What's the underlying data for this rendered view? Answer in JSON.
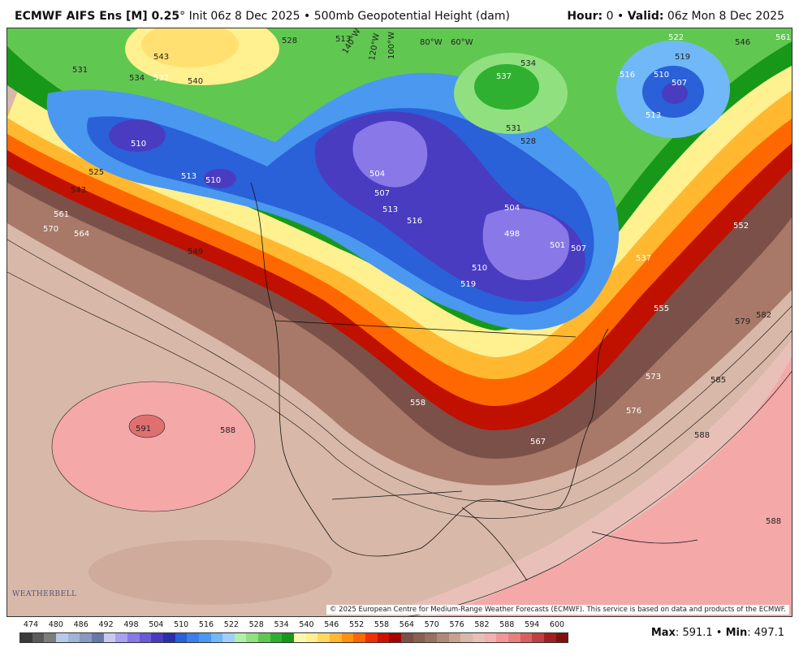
{
  "header": {
    "model": "ECMWF AIFS Ens [M] 0.25",
    "degree": "°",
    "init": "Init 06z 8 Dec 2025",
    "bullet": "•",
    "field": "500mb Geopotential Height (dam)",
    "hour_label": "Hour:",
    "hour_value": "0",
    "valid_label": "Valid:",
    "valid_value": "06z Mon 8 Dec 2025"
  },
  "copyright": "© 2025 European Centre for Medium-Range Weather Forecasts (ECMWF). This service is based on data and products of the ECMWF.",
  "logo": "WEATHERBELL",
  "colorbar": {
    "ticks": [
      "474",
      "480",
      "486",
      "492",
      "498",
      "504",
      "510",
      "516",
      "522",
      "528",
      "534",
      "540",
      "546",
      "552",
      "558",
      "564",
      "570",
      "576",
      "582",
      "588",
      "594",
      "600"
    ],
    "colors": [
      "#3a3a3a",
      "#5a5a5a",
      "#7d7d7d",
      "#b8c8e8",
      "#a0b4d8",
      "#8898c0",
      "#6878a8",
      "#c8c8f0",
      "#a8a0f0",
      "#8878e8",
      "#6a5ad8",
      "#4a3cc0",
      "#2a30a8",
      "#2a60d8",
      "#3a80e8",
      "#4a98f0",
      "#70b8f8",
      "#a0d0fa",
      "#b0f0a8",
      "#90e080",
      "#60c850",
      "#30b030",
      "#189818",
      "#f8f8b0",
      "#fff090",
      "#ffd860",
      "#ffb830",
      "#ff9010",
      "#ff6800",
      "#f03000",
      "#d01000",
      "#a80000",
      "#7a5048",
      "#8a6050",
      "#9a7060",
      "#b08878",
      "#c8a090",
      "#d8b8a8",
      "#e8c0b8",
      "#f4b0b0",
      "#f09898",
      "#e88080",
      "#d86060",
      "#c04040",
      "#a02020",
      "#801010"
    ]
  },
  "stats": {
    "max_label": "Max",
    "max_value": "591.1",
    "min_label": "Min",
    "min_value": "497.1"
  },
  "map_labels": {
    "l543": "543",
    "l540": "540",
    "l537": "537",
    "l534": "534",
    "l531": "531",
    "l528": "528",
    "l525": "525",
    "l510a": "510",
    "l513a": "513",
    "l510b": "510",
    "l561": "561",
    "l570": "570",
    "l564": "564",
    "l549": "549",
    "l543b": "543",
    "l504a": "504",
    "l507a": "507",
    "l504b": "504",
    "l498": "498",
    "l501": "501",
    "l507b": "507",
    "l510c": "510",
    "l519": "519",
    "l516b": "516",
    "l513b": "513",
    "l537b": "537",
    "l534b": "534",
    "l531b": "531",
    "l528b": "528",
    "l522": "522",
    "l519b": "519",
    "l516": "516",
    "l510d": "510",
    "l507c": "507",
    "l513c": "513",
    "l546": "546",
    "l567": "567",
    "l561b": "561",
    "l552": "552",
    "l537c": "537",
    "l555": "555",
    "l579": "579",
    "l582": "582",
    "l573": "573",
    "l585": "585",
    "l576": "576",
    "l588a": "588",
    "l588b": "588",
    "l588c": "588",
    "l591": "591",
    "l558": "558",
    "l567b": "567",
    "l528c": "528",
    "l513d": "513",
    "lon140": "140°W",
    "lon120": "120°W",
    "lon100": "100°W",
    "lon80": "80°W",
    "lon60": "60°W"
  }
}
